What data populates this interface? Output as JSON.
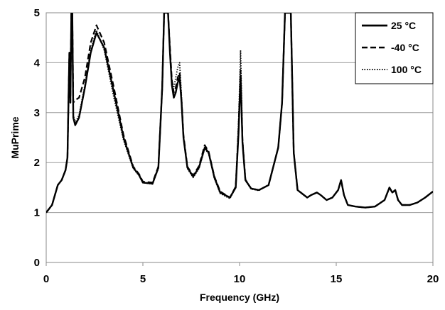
{
  "chart_data": {
    "type": "line",
    "xlabel": "Frequency (GHz)",
    "ylabel": "MuPrime",
    "xlim": [
      0,
      20
    ],
    "ylim": [
      0,
      5
    ],
    "xticks": [
      "0",
      "5",
      "10",
      "15",
      "20"
    ],
    "yticks": [
      "0",
      "1",
      "2",
      "3",
      "4",
      "5"
    ],
    "grid": "horizontal",
    "legend_position": "top-right",
    "series": [
      {
        "name": "25 °C",
        "style": "solid",
        "x": [
          0,
          0.3,
          0.6,
          0.8,
          1.0,
          1.1,
          1.15,
          1.2,
          1.25,
          1.3,
          1.35,
          1.4,
          1.5,
          1.7,
          2.0,
          2.3,
          2.6,
          3.0,
          3.5,
          4.0,
          4.5,
          4.8,
          5.0,
          5.5,
          5.8,
          6.0,
          6.1,
          6.2,
          6.3,
          6.4,
          6.5,
          6.6,
          6.7,
          6.8,
          6.9,
          7.0,
          7.1,
          7.3,
          7.6,
          7.9,
          8.2,
          8.4,
          8.7,
          9.0,
          9.5,
          9.8,
          9.95,
          10.05,
          10.15,
          10.3,
          10.6,
          11.0,
          11.5,
          12.0,
          12.2,
          12.35,
          12.5,
          12.65,
          12.8,
          13.0,
          13.5,
          13.7,
          14.0,
          14.2,
          14.5,
          14.8,
          15.1,
          15.25,
          15.4,
          15.6,
          16.0,
          16.5,
          17.0,
          17.5,
          17.75,
          17.9,
          18.05,
          18.2,
          18.4,
          18.8,
          19.2,
          19.6,
          20.0
        ],
        "y": [
          1.0,
          1.15,
          1.55,
          1.65,
          1.85,
          2.1,
          3.2,
          4.2,
          3.2,
          5.0,
          5.0,
          2.9,
          2.75,
          2.9,
          3.5,
          4.2,
          4.6,
          4.3,
          3.4,
          2.5,
          1.9,
          1.75,
          1.6,
          1.58,
          1.9,
          3.5,
          5.0,
          5.0,
          5.0,
          4.2,
          3.55,
          3.3,
          3.4,
          3.6,
          3.7,
          3.2,
          2.5,
          1.9,
          1.72,
          1.9,
          2.3,
          2.2,
          1.7,
          1.4,
          1.3,
          1.5,
          2.6,
          3.75,
          2.4,
          1.65,
          1.48,
          1.45,
          1.55,
          2.3,
          3.2,
          5.0,
          5.0,
          5.0,
          2.2,
          1.45,
          1.3,
          1.35,
          1.4,
          1.35,
          1.25,
          1.3,
          1.45,
          1.65,
          1.35,
          1.15,
          1.12,
          1.1,
          1.12,
          1.25,
          1.5,
          1.4,
          1.45,
          1.25,
          1.15,
          1.15,
          1.2,
          1.3,
          1.42
        ]
      },
      {
        "name": "-40 °C",
        "style": "dashed",
        "x": [
          0,
          0.3,
          0.6,
          0.8,
          1.0,
          1.1,
          1.15,
          1.2,
          1.25,
          1.3,
          1.35,
          1.4,
          1.5,
          1.7,
          2.0,
          2.3,
          2.6,
          3.0,
          3.5,
          4.0,
          4.5,
          4.8,
          5.0,
          5.5,
          5.8,
          6.0,
          6.1,
          6.2,
          6.3,
          6.4,
          6.5,
          6.6,
          6.7,
          6.8,
          6.9,
          7.0,
          7.1,
          7.3,
          7.6,
          7.9,
          8.2,
          8.4,
          8.7,
          9.0,
          9.5,
          9.8,
          9.95,
          10.05,
          10.15,
          10.3,
          10.6,
          11.0,
          11.5,
          12.0,
          12.2,
          12.35,
          12.5,
          12.65,
          12.8,
          13.0,
          13.5,
          13.7,
          14.0,
          14.2,
          14.5,
          14.8,
          15.1,
          15.25,
          15.4,
          15.6,
          16.0,
          16.5,
          17.0,
          17.5,
          17.75,
          17.9,
          18.05,
          18.2,
          18.4,
          18.8,
          19.2,
          19.6,
          20.0
        ],
        "y": [
          1.0,
          1.15,
          1.55,
          1.65,
          1.85,
          2.1,
          3.2,
          4.2,
          3.2,
          5.0,
          5.0,
          3.2,
          3.25,
          3.3,
          3.7,
          4.4,
          4.75,
          4.4,
          3.5,
          2.55,
          1.92,
          1.77,
          1.62,
          1.6,
          1.92,
          3.5,
          5.0,
          5.0,
          5.0,
          4.3,
          3.65,
          3.4,
          3.5,
          3.7,
          3.8,
          3.25,
          2.55,
          1.92,
          1.74,
          1.93,
          2.35,
          2.22,
          1.72,
          1.42,
          1.3,
          1.52,
          2.7,
          3.85,
          2.45,
          1.66,
          1.48,
          1.45,
          1.55,
          2.3,
          3.2,
          5.0,
          5.0,
          5.0,
          2.2,
          1.45,
          1.3,
          1.35,
          1.4,
          1.35,
          1.25,
          1.3,
          1.45,
          1.65,
          1.35,
          1.15,
          1.12,
          1.1,
          1.12,
          1.25,
          1.5,
          1.4,
          1.45,
          1.25,
          1.15,
          1.15,
          1.2,
          1.3,
          1.42
        ]
      },
      {
        "name": "100 °C",
        "style": "dotted",
        "x": [
          0,
          0.3,
          0.6,
          0.8,
          1.0,
          1.1,
          1.15,
          1.2,
          1.25,
          1.3,
          1.35,
          1.4,
          1.5,
          1.7,
          2.0,
          2.3,
          2.6,
          3.0,
          3.5,
          4.0,
          4.5,
          4.8,
          5.0,
          5.5,
          5.8,
          6.0,
          6.1,
          6.2,
          6.3,
          6.4,
          6.5,
          6.6,
          6.7,
          6.8,
          6.9,
          7.0,
          7.1,
          7.3,
          7.6,
          7.9,
          8.2,
          8.4,
          8.7,
          9.0,
          9.5,
          9.8,
          9.95,
          10.05,
          10.15,
          10.3,
          10.6,
          11.0,
          11.5,
          12.0,
          12.2,
          12.35,
          12.5,
          12.65,
          12.8,
          13.0,
          13.5,
          13.7,
          14.0,
          14.2,
          14.5,
          14.8,
          15.1,
          15.25,
          15.4,
          15.6,
          16.0,
          16.5,
          17.0,
          17.5,
          17.75,
          17.9,
          18.05,
          18.2,
          18.4,
          18.8,
          19.2,
          19.6,
          20.0
        ],
        "y": [
          1.0,
          1.15,
          1.55,
          1.65,
          1.85,
          2.1,
          3.2,
          4.2,
          3.2,
          5.0,
          5.0,
          2.95,
          2.8,
          2.95,
          3.55,
          4.25,
          4.65,
          4.25,
          3.3,
          2.45,
          1.88,
          1.74,
          1.6,
          1.57,
          1.88,
          3.5,
          5.0,
          5.0,
          5.0,
          4.2,
          3.6,
          3.5,
          3.7,
          3.9,
          4.0,
          3.3,
          2.5,
          1.88,
          1.7,
          1.88,
          2.28,
          2.18,
          1.68,
          1.38,
          1.28,
          1.5,
          2.8,
          4.25,
          2.5,
          1.64,
          1.47,
          1.44,
          1.55,
          2.3,
          3.2,
          5.0,
          5.0,
          5.0,
          2.2,
          1.45,
          1.3,
          1.35,
          1.4,
          1.35,
          1.25,
          1.3,
          1.45,
          1.65,
          1.35,
          1.15,
          1.12,
          1.1,
          1.12,
          1.25,
          1.5,
          1.4,
          1.45,
          1.25,
          1.15,
          1.15,
          1.2,
          1.3,
          1.42
        ]
      }
    ]
  }
}
